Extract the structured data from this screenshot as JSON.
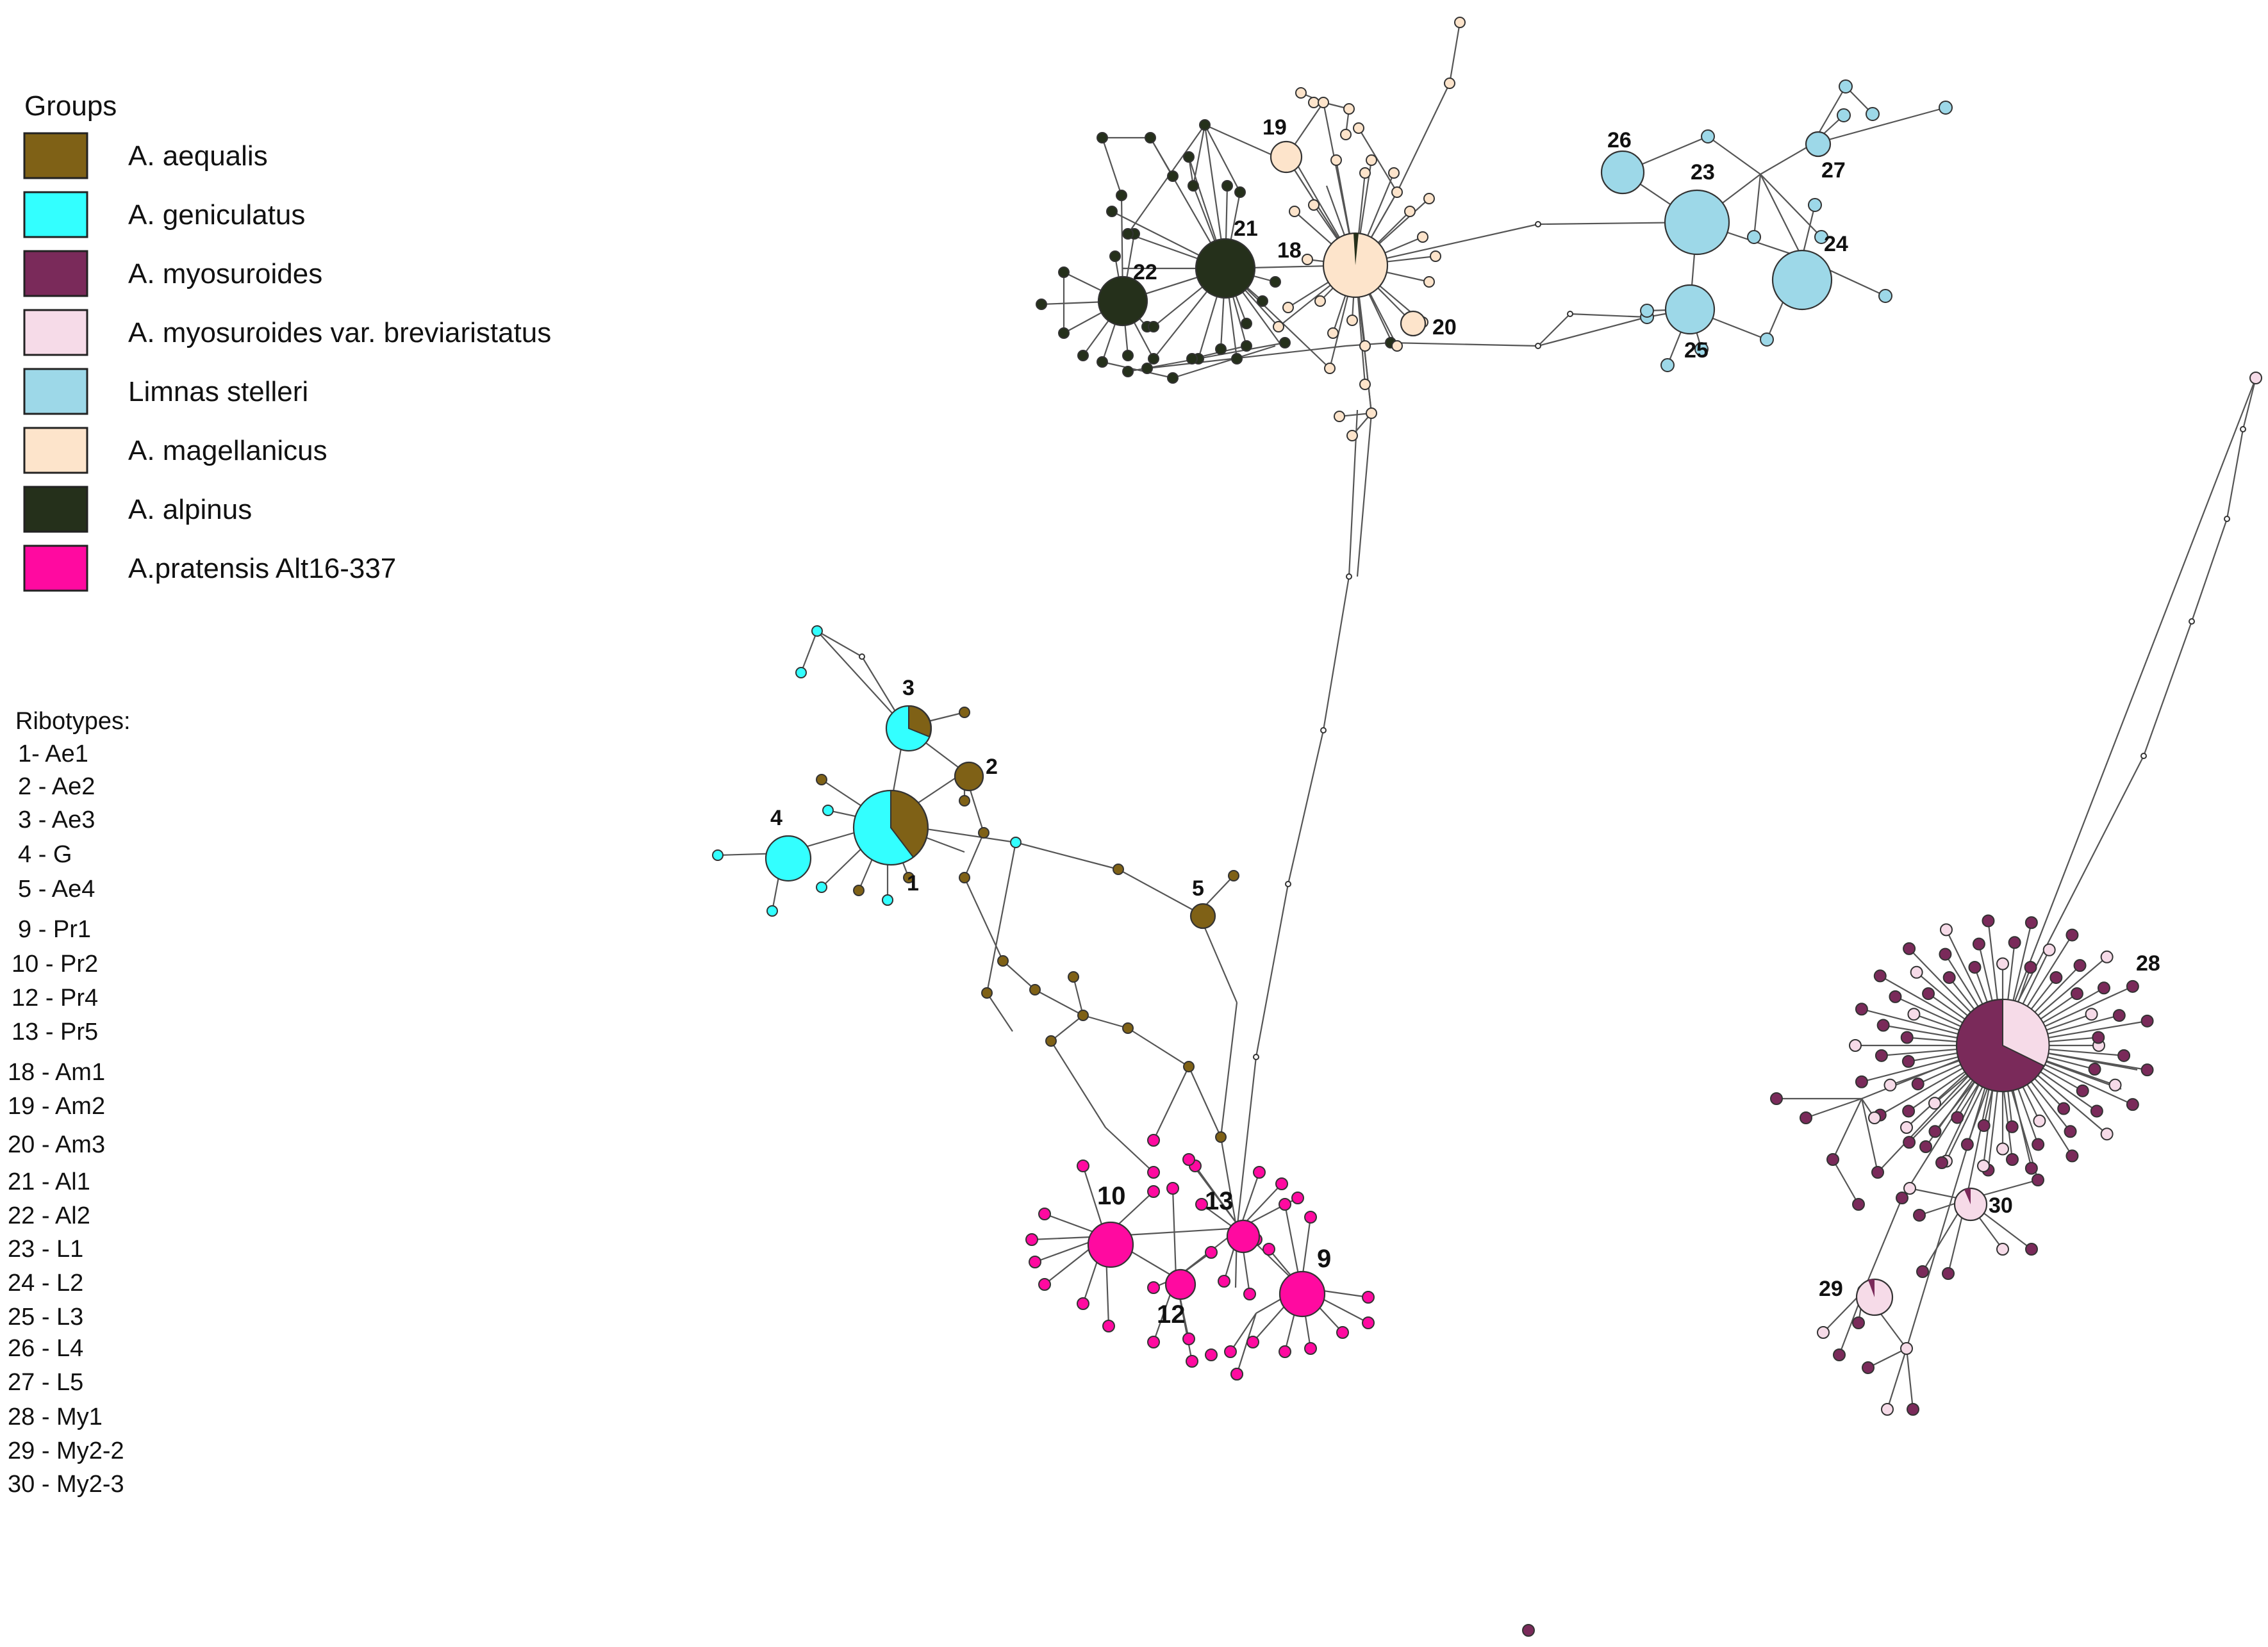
{
  "legend": {
    "title": "Groups",
    "items": [
      {
        "key": "aequalis",
        "label": "A. aequalis",
        "color": "#7f6116"
      },
      {
        "key": "geniculatus",
        "label": "A. geniculatus",
        "color": "#33ffff"
      },
      {
        "key": "myosuroides",
        "label": "A. myosuroides",
        "color": "#7a2a5a"
      },
      {
        "key": "breviaristatus",
        "label": "A. myosuroides var. breviaristatus",
        "color": "#f6dbe8"
      },
      {
        "key": "limnas",
        "label": "Limnas stelleri",
        "color": "#9dd8e8"
      },
      {
        "key": "magellanicus",
        "label": "A. magellanicus",
        "color": "#fde4cb"
      },
      {
        "key": "alpinus",
        "label": "A. alpinus",
        "color": "#25301b"
      },
      {
        "key": "pratensis",
        "label": "A.pratensis Alt16-337",
        "color": "#ff0aa0"
      }
    ]
  },
  "ribotypes": {
    "title": "Ribotypes:",
    "items": [
      "1- Ae1",
      "2 - Ae2",
      "3 - Ae3",
      "4 - G",
      "5 - Ae4",
      "9 - Pr1",
      "10 - Pr2",
      "12 - Pr4",
      "13 - Pr5",
      "18 - Am1",
      "19 - Am2",
      "20 - Am3",
      "21 - Al1",
      "22 - Al2",
      "23 - L1",
      "24 - L2",
      "25 - L3",
      "26 - L4",
      "27 - L5",
      "28 - My1",
      "29 - My2-2",
      "30 - My2-3"
    ]
  },
  "node_labels": {
    "n1": "1",
    "n2": "2",
    "n3": "3",
    "n4": "4",
    "n5": "5",
    "n9": "9",
    "n10": "10",
    "n12": "12",
    "n13": "13",
    "n18": "18",
    "n19": "19",
    "n20": "20",
    "n21": "21",
    "n22": "22",
    "n23": "23",
    "n24": "24",
    "n25": "25",
    "n26": "26",
    "n27": "27",
    "n28": "28",
    "n29": "29",
    "n30": "30"
  }
}
